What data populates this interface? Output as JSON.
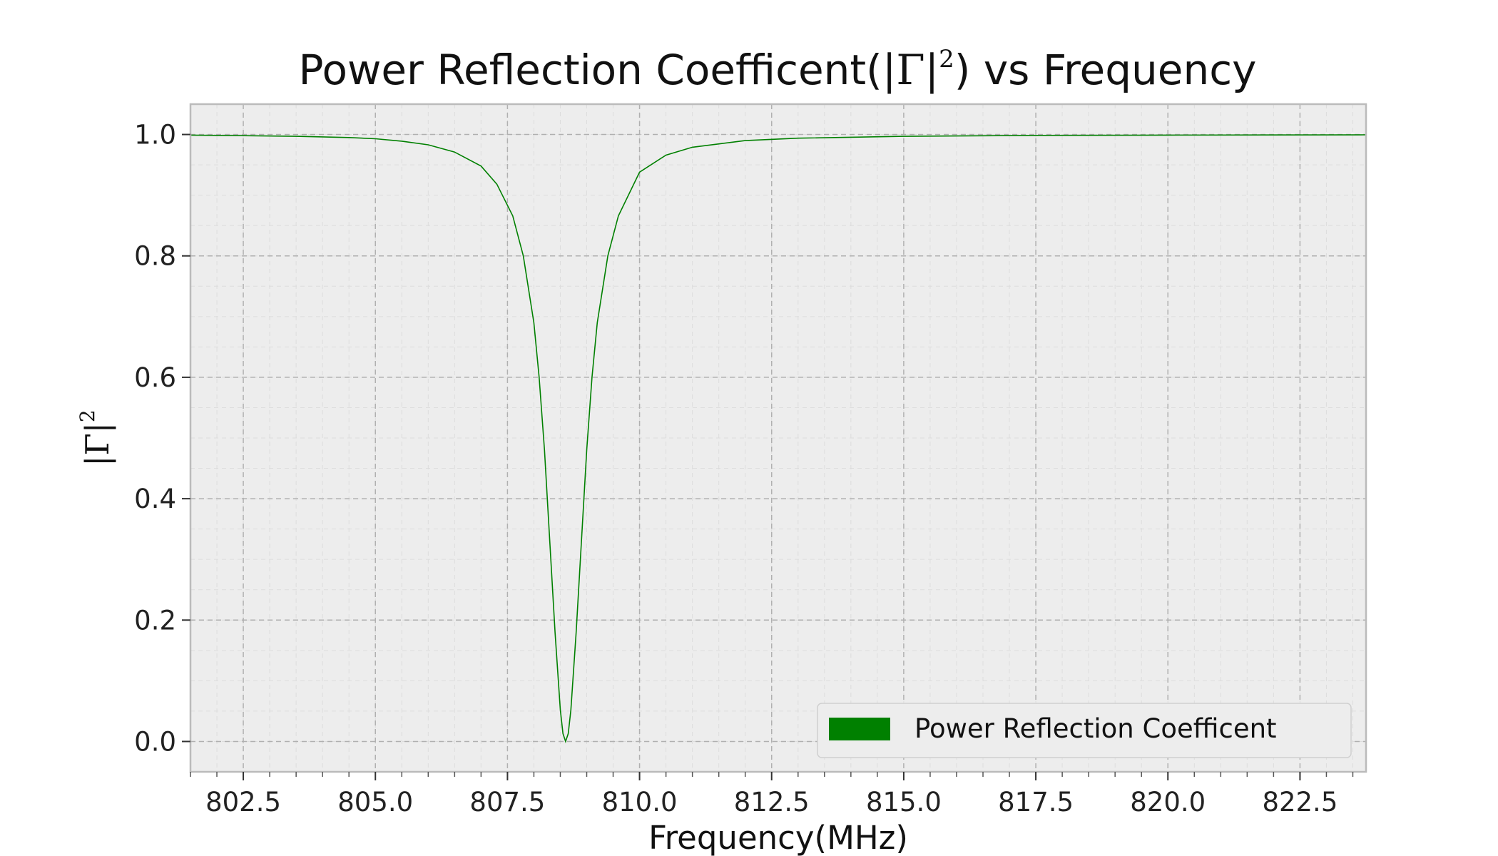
{
  "chart_data": {
    "type": "line",
    "title": "Power Reflection Coefficent(|Γ|²) vs Frequency",
    "title_parts": {
      "prefix": "Power Reflection Coefficent(",
      "math": "|Γ|",
      "sup": "2",
      "suffix": ") vs Frequency"
    },
    "xlabel": "Frequency(MHz)",
    "ylabel": "|Γ|²",
    "ylabel_parts": {
      "math": "|Γ|",
      "sup": "2"
    },
    "xlim": [
      801.5,
      823.75
    ],
    "ylim": [
      -0.05,
      1.05
    ],
    "xticks": [
      802.5,
      805.0,
      807.5,
      810.0,
      812.5,
      815.0,
      817.5,
      820.0,
      822.5
    ],
    "xtick_labels": [
      "802.5",
      "805.0",
      "807.5",
      "810.0",
      "812.5",
      "815.0",
      "817.5",
      "820.0",
      "822.5"
    ],
    "yticks": [
      0.0,
      0.2,
      0.4,
      0.6,
      0.8,
      1.0
    ],
    "ytick_labels": [
      "0.0",
      "0.2",
      "0.4",
      "0.6",
      "0.8",
      "1.0"
    ],
    "grid": true,
    "minor_grid": true,
    "legend_position": "lower-right",
    "series": [
      {
        "name": "Power Reflection Coefficent",
        "color": "#008000",
        "x": [
          801.5,
          802.5,
          803.5,
          804.5,
          805.0,
          805.5,
          806.0,
          806.5,
          807.0,
          807.3,
          807.6,
          807.8,
          808.0,
          808.1,
          808.2,
          808.3,
          808.4,
          808.5,
          808.55,
          808.6,
          808.65,
          808.7,
          808.8,
          808.9,
          809.0,
          809.1,
          809.2,
          809.4,
          809.6,
          810.0,
          810.5,
          811.0,
          812.0,
          813.0,
          815.0,
          817.5,
          820.0,
          823.75
        ],
        "y": [
          0.999,
          0.998,
          0.997,
          0.995,
          0.993,
          0.989,
          0.983,
          0.971,
          0.948,
          0.918,
          0.866,
          0.8,
          0.69,
          0.6,
          0.48,
          0.33,
          0.18,
          0.052,
          0.013,
          0.0,
          0.013,
          0.052,
          0.18,
          0.33,
          0.48,
          0.6,
          0.69,
          0.8,
          0.866,
          0.938,
          0.966,
          0.979,
          0.99,
          0.994,
          0.997,
          0.9985,
          0.999,
          0.9995
        ]
      }
    ]
  }
}
